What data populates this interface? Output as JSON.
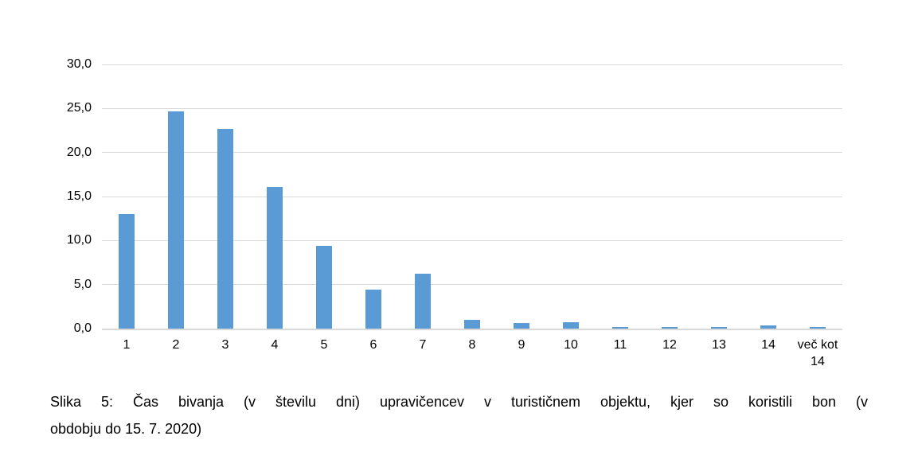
{
  "chart_data": {
    "type": "bar",
    "categories": [
      "1",
      "2",
      "3",
      "4",
      "5",
      "6",
      "7",
      "8",
      "9",
      "10",
      "11",
      "12",
      "13",
      "14",
      "več kot 14"
    ],
    "values": [
      13.0,
      24.7,
      22.7,
      16.1,
      9.4,
      4.4,
      6.2,
      1.0,
      0.6,
      0.7,
      0.2,
      0.2,
      0.2,
      0.4,
      0.2
    ],
    "title": "",
    "xlabel": "",
    "ylabel": "",
    "ylim": [
      0,
      30
    ],
    "y_ticks": [
      {
        "value": 0,
        "label": "0,0"
      },
      {
        "value": 5,
        "label": "5,0"
      },
      {
        "value": 10,
        "label": "10,0"
      },
      {
        "value": 15,
        "label": "15,0"
      },
      {
        "value": 20,
        "label": "20,0"
      },
      {
        "value": 25,
        "label": "25,0"
      },
      {
        "value": 30,
        "label": "30,0"
      }
    ],
    "grid": true,
    "legend": false,
    "bar_color": "#5B9BD5",
    "gridline_color": "#D9D9D9",
    "axis_line_color": "#D9D9D9",
    "tick_text_color": "#000000"
  },
  "caption": {
    "line1": "Slika 5: Čas bivanja (v številu dni) upravičencev v turističnem objektu, kjer so koristili bon (v",
    "line2": "obdobju do 15. 7. 2020)"
  }
}
